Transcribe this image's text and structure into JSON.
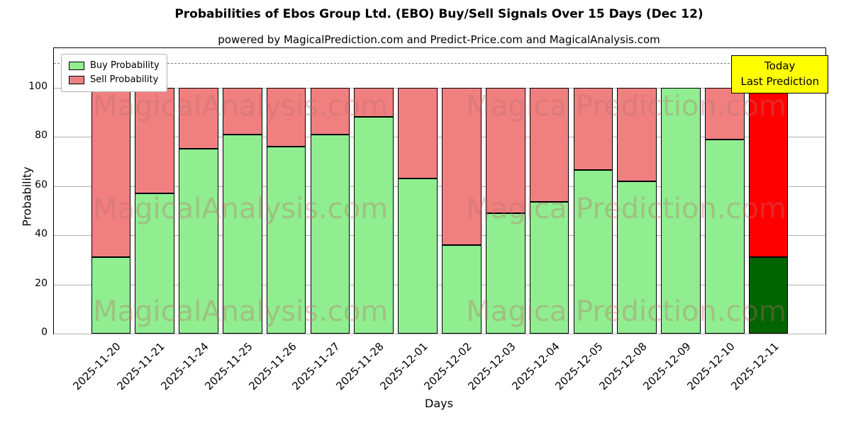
{
  "title": "Probabilities of Ebos Group Ltd. (EBO) Buy/Sell Signals Over 15 Days (Dec 12)",
  "subtitle": "powered by MagicalPrediction.com and Predict-Price.com and MagicalAnalysis.com",
  "legend": {
    "buy_label": "Buy Probability",
    "sell_label": "Sell Probability"
  },
  "annotation": {
    "line1": "Today",
    "line2": "Last Prediction"
  },
  "watermark": {
    "left_text": "MagicalAnalysis.com",
    "right_text": "Magica Prediction.com"
  },
  "colors": {
    "buy": "#90EE90",
    "sell": "#F08080",
    "last_buy": "#006400",
    "last_sell": "#FF0000",
    "annotation_bg": "#FFFF00",
    "grid": "#b0b0b0"
  },
  "chart_data": {
    "type": "bar",
    "stacked": true,
    "title": "Probabilities of Ebos Group Ltd. (EBO) Buy/Sell Signals Over 15 Days (Dec 12)",
    "xlabel": "Days",
    "ylabel": "Probability",
    "ylim": [
      0,
      116
    ],
    "yticks": [
      0,
      20,
      40,
      60,
      80,
      100
    ],
    "dashed_line_y": 110,
    "grid": true,
    "legend_position": "upper left",
    "categories": [
      "2025-11-20",
      "2025-11-21",
      "2025-11-24",
      "2025-11-25",
      "2025-11-26",
      "2025-11-27",
      "2025-11-28",
      "2025-12-01",
      "2025-12-02",
      "2025-12-03",
      "2025-12-04",
      "2025-12-05",
      "2025-12-08",
      "2025-12-09",
      "2025-12-10",
      "2025-12-11"
    ],
    "series": [
      {
        "name": "Buy Probability",
        "color": "#90EE90",
        "values": [
          31,
          57,
          75,
          81,
          76,
          81,
          88,
          63,
          36,
          49,
          53.5,
          66.5,
          62,
          100,
          79,
          31
        ]
      },
      {
        "name": "Sell Probability",
        "color": "#F08080",
        "values": [
          69,
          43,
          25,
          19,
          24,
          19,
          12,
          37,
          64,
          51,
          46.5,
          33.5,
          38,
          0,
          21,
          69
        ]
      }
    ],
    "last_bar_index": 15,
    "last_bar_buy_color": "#006400",
    "last_bar_sell_color": "#FF0000"
  }
}
